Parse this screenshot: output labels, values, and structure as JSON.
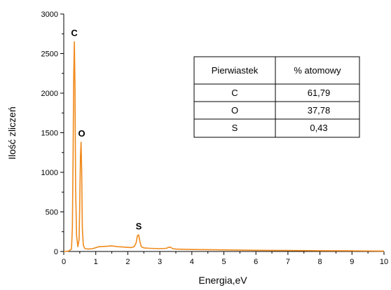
{
  "chart_data": {
    "type": "line",
    "xlabel": "Energia,eV",
    "ylabel": "Ilość zliczeń",
    "xlim": [
      0,
      10
    ],
    "ylim": [
      0,
      3000
    ],
    "x_ticks": [
      "0",
      "1",
      "2",
      "3",
      "4",
      "5",
      "6",
      "7",
      "8",
      "9",
      "10"
    ],
    "y_ticks": [
      "0",
      "500",
      "1000",
      "1500",
      "2000",
      "2500",
      "3000"
    ],
    "color": "#F08A1C",
    "series": [
      {
        "x": [
          0.0,
          0.15,
          0.24,
          0.27,
          0.29,
          0.31,
          0.33,
          0.35,
          0.37,
          0.4,
          0.44,
          0.48,
          0.5,
          0.52,
          0.54,
          0.56,
          0.58,
          0.61,
          0.65,
          0.75,
          0.9,
          1.1,
          1.3,
          1.5,
          1.7,
          1.9,
          2.1,
          2.2,
          2.26,
          2.3,
          2.34,
          2.38,
          2.42,
          2.5,
          2.7,
          3.0,
          3.2,
          3.3,
          3.35,
          3.4,
          3.5,
          4.0,
          5.0,
          6.0,
          7.0,
          8.0,
          9.0,
          10.0
        ],
        "y": [
          0,
          5,
          30,
          300,
          1200,
          2200,
          2650,
          2100,
          800,
          200,
          60,
          150,
          600,
          1200,
          1380,
          1000,
          300,
          80,
          40,
          30,
          35,
          60,
          65,
          70,
          60,
          55,
          50,
          60,
          110,
          200,
          210,
          120,
          60,
          45,
          40,
          35,
          40,
          55,
          50,
          35,
          30,
          25,
          20,
          15,
          12,
          10,
          8,
          5
        ]
      }
    ],
    "annotations": [
      {
        "text": "C",
        "x": 0.33,
        "y": 2650
      },
      {
        "text": "O",
        "x": 0.56,
        "y": 1380
      },
      {
        "text": "S",
        "x": 2.34,
        "y": 210
      }
    ],
    "table": {
      "headers": [
        "Pierwiastek",
        "% atomowy"
      ],
      "rows": [
        [
          "C",
          "61,79"
        ],
        [
          "O",
          "37,78"
        ],
        [
          "S",
          "0,43"
        ]
      ]
    }
  }
}
